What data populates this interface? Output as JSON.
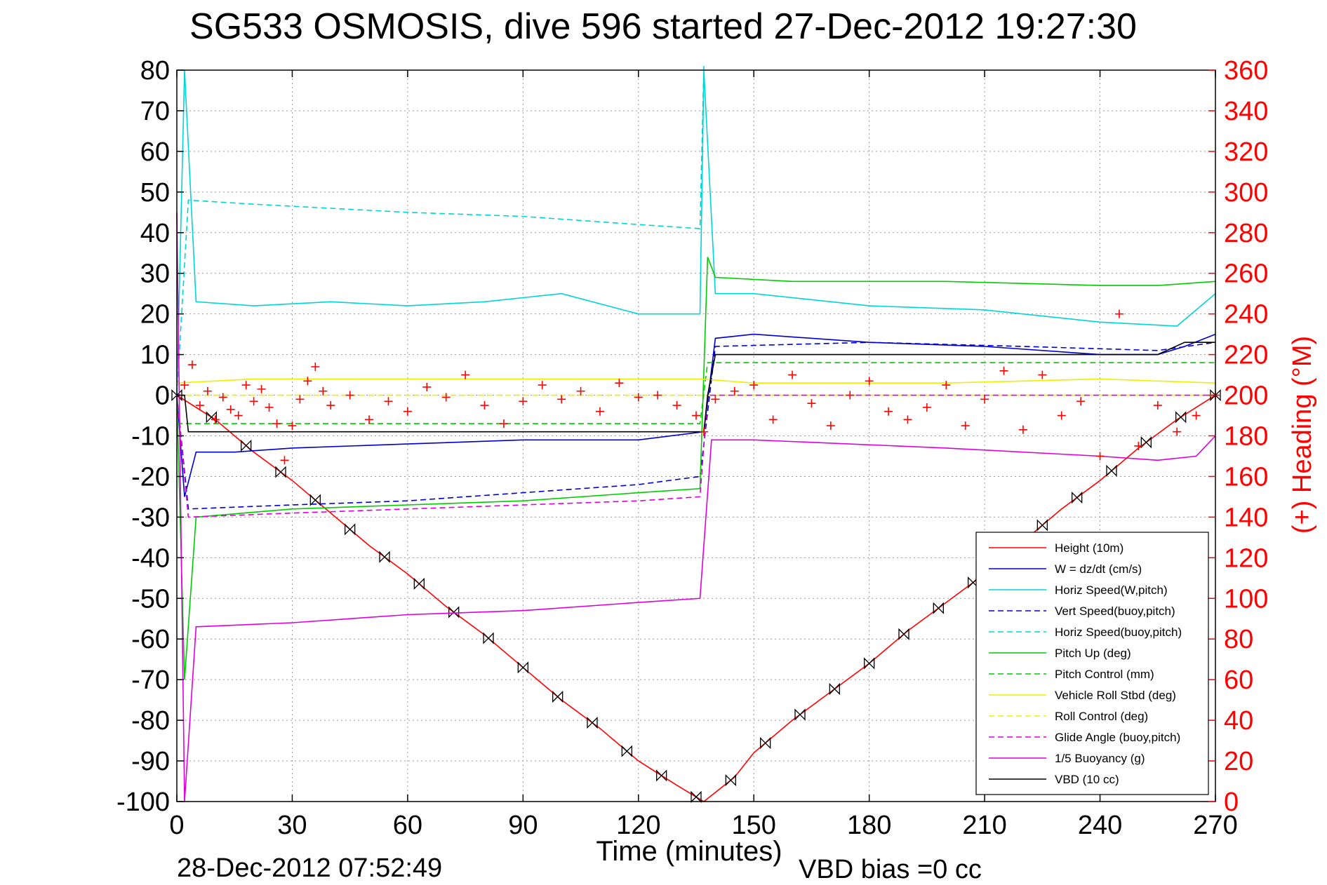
{
  "chart_data": {
    "type": "line",
    "title": "SG533 OSMOSIS, dive 596 started 27-Dec-2012 19:27:30",
    "xlabel": "Time (minutes)",
    "ylabel_right": "(+) Heading (°M)",
    "footer_left": "28-Dec-2012 07:52:49",
    "footer_right": "VBD bias =0 cc",
    "xlim": [
      0,
      270
    ],
    "ylim_left": [
      -100,
      80
    ],
    "ylim_right": [
      0,
      360
    ],
    "x_ticks": [
      "0",
      "30",
      "60",
      "90",
      "120",
      "150",
      "180",
      "210",
      "240",
      "270"
    ],
    "y_ticks_left": [
      "80",
      "70",
      "60",
      "50",
      "40",
      "30",
      "20",
      "10",
      "0",
      "-10",
      "-20",
      "-30",
      "-40",
      "-50",
      "-60",
      "-70",
      "-80",
      "-90",
      "-100"
    ],
    "y_ticks_right": [
      "360",
      "340",
      "320",
      "300",
      "280",
      "260",
      "240",
      "220",
      "200",
      "180",
      "160",
      "140",
      "120",
      "100",
      "80",
      "60",
      "40",
      "20",
      "0"
    ],
    "grid": true,
    "legend_position": "bottom-right",
    "legend": [
      {
        "label": "Height (10m)",
        "color": "#ff0000",
        "dash": false
      },
      {
        "label": "W = dz/dt (cm/s)",
        "color": "#0000cc",
        "dash": false
      },
      {
        "label": "Horiz Speed(W,pitch)",
        "color": "#00d5d5",
        "dash": false
      },
      {
        "label": "Vert Speed(buoy,pitch)",
        "color": "#0000cc",
        "dash": true
      },
      {
        "label": "Horiz Speed(buoy,pitch)",
        "color": "#00d5d5",
        "dash": true
      },
      {
        "label": "Pitch Up (deg)",
        "color": "#00cc00",
        "dash": false
      },
      {
        "label": "Pitch Control (mm)",
        "color": "#00cc00",
        "dash": true
      },
      {
        "label": "Vehicle Roll Stbd (deg)",
        "color": "#eeee00",
        "dash": false
      },
      {
        "label": "Roll Control (deg)",
        "color": "#eeee00",
        "dash": true
      },
      {
        "label": "Glide Angle (buoy,pitch)",
        "color": "#dd00dd",
        "dash": true
      },
      {
        "label": "1/5 Buoyancy (g)",
        "color": "#dd00dd",
        "dash": false
      },
      {
        "label": "VBD (10 cc)",
        "color": "#000000",
        "dash": false
      }
    ],
    "series": [
      {
        "name": "Height (10m)",
        "color": "#ff0000",
        "axis": "left",
        "x": [
          0,
          10,
          20,
          30,
          40,
          50,
          60,
          70,
          80,
          90,
          100,
          110,
          120,
          130,
          137,
          145,
          150,
          160,
          170,
          180,
          190,
          200,
          210,
          220,
          230,
          240,
          250,
          260,
          270
        ],
        "y": [
          0,
          -6,
          -14,
          -21,
          -29,
          -37,
          -44,
          -52,
          -59,
          -67,
          -75,
          -82,
          -90,
          -96,
          -100,
          -94,
          -88,
          -80,
          -73,
          -66,
          -58,
          -51,
          -44,
          -36,
          -28,
          -21,
          -13,
          -6,
          0
        ]
      },
      {
        "name": "W = dz/dt (cm/s)",
        "color": "#0000cc",
        "axis": "left",
        "x": [
          0,
          2,
          5,
          15,
          30,
          60,
          90,
          120,
          137,
          140,
          150,
          180,
          210,
          240,
          255,
          262,
          270
        ],
        "y": [
          0,
          -25,
          -14,
          -14,
          -13,
          -12,
          -11,
          -11,
          -9,
          14,
          15,
          13,
          12,
          10,
          10,
          12,
          15
        ]
      },
      {
        "name": "Horiz Speed(W,pitch)",
        "color": "#00d5d5",
        "axis": "left",
        "x": [
          0,
          2,
          5,
          20,
          40,
          60,
          80,
          100,
          120,
          136,
          137,
          140,
          150,
          180,
          210,
          240,
          260,
          270
        ],
        "y": [
          0,
          80,
          23,
          22,
          23,
          22,
          23,
          25,
          20,
          20,
          80,
          25,
          25,
          22,
          21,
          18,
          17,
          25
        ]
      },
      {
        "name": "Vert Speed(buoy,pitch)",
        "color": "#0000cc",
        "dash": true,
        "axis": "left",
        "x": [
          0,
          3,
          30,
          60,
          90,
          120,
          136,
          140,
          180,
          220,
          255,
          270
        ],
        "y": [
          0,
          -28,
          -27,
          -26,
          -24,
          -22,
          -20,
          12,
          13,
          12,
          11,
          13
        ]
      },
      {
        "name": "Horiz Speed(buoy,pitch)",
        "color": "#00d5d5",
        "dash": true,
        "axis": "left",
        "x": [
          0,
          3,
          20,
          60,
          90,
          120,
          136,
          137
        ],
        "y": [
          0,
          48,
          47,
          45,
          44,
          42,
          41,
          81
        ]
      },
      {
        "name": "Pitch Up (deg)",
        "color": "#00cc00",
        "axis": "left",
        "x": [
          0,
          2,
          5,
          30,
          60,
          90,
          120,
          136,
          138,
          140,
          160,
          200,
          240,
          255,
          270
        ],
        "y": [
          0,
          -70,
          -30,
          -28,
          -27,
          -26,
          -24,
          -23,
          34,
          29,
          28,
          28,
          27,
          27,
          28
        ]
      },
      {
        "name": "Pitch Control (mm)",
        "color": "#00cc00",
        "dash": true,
        "axis": "left",
        "x": [
          0,
          5,
          136,
          138,
          270
        ],
        "y": [
          -7,
          -7,
          -7,
          8,
          8
        ]
      },
      {
        "name": "Vehicle Roll Stbd (deg)",
        "color": "#eeee00",
        "axis": "left",
        "x": [
          0,
          20,
          60,
          100,
          136,
          150,
          200,
          240,
          270
        ],
        "y": [
          3,
          4,
          4,
          4,
          4,
          3,
          3,
          4,
          3
        ]
      },
      {
        "name": "Roll Control (deg)",
        "color": "#eeee00",
        "dash": true,
        "axis": "left",
        "x": [
          0,
          270
        ],
        "y": [
          0,
          0
        ]
      },
      {
        "name": "Glide Angle (buoy,pitch)",
        "color": "#dd00dd",
        "dash": true,
        "axis": "left",
        "x": [
          0,
          3,
          30,
          60,
          90,
          120,
          136,
          138,
          270
        ],
        "y": [
          0,
          -30,
          -29,
          -28,
          -27,
          -26,
          -25,
          0,
          0
        ]
      },
      {
        "name": "1/5 Buoyancy (g)",
        "color": "#dd00dd",
        "axis": "left",
        "x": [
          0,
          2,
          5,
          30,
          60,
          90,
          120,
          136,
          139,
          150,
          200,
          240,
          255,
          265,
          270
        ],
        "y": [
          45,
          -100,
          -57,
          -56,
          -54,
          -53,
          -51,
          -50,
          -11,
          -11,
          -13,
          -15,
          -16,
          -15,
          -10
        ]
      },
      {
        "name": "VBD (10 cc)",
        "color": "#000000",
        "axis": "left",
        "x": [
          0,
          2,
          3,
          137,
          138,
          140,
          255,
          262,
          270
        ],
        "y": [
          0,
          0,
          -9,
          -9,
          0,
          10,
          10,
          13,
          13
        ]
      },
      {
        "name": "Heading",
        "color": "#ff0000",
        "axis": "right",
        "marker": "plus",
        "x": [
          2,
          4,
          6,
          8,
          10,
          12,
          14,
          16,
          18,
          20,
          22,
          24,
          26,
          28,
          30,
          32,
          34,
          36,
          38,
          40,
          45,
          50,
          55,
          60,
          65,
          70,
          75,
          80,
          85,
          90,
          95,
          100,
          105,
          110,
          115,
          120,
          125,
          130,
          135,
          137,
          140,
          145,
          150,
          155,
          160,
          165,
          170,
          175,
          180,
          185,
          190,
          195,
          200,
          205,
          210,
          215,
          220,
          225,
          230,
          235,
          240,
          245,
          250,
          255,
          260,
          265,
          270
        ],
        "y": [
          205,
          215,
          195,
          202,
          188,
          199,
          193,
          190,
          205,
          197,
          203,
          194,
          186,
          168,
          185,
          198,
          207,
          214,
          202,
          195,
          200,
          188,
          197,
          192,
          204,
          199,
          210,
          195,
          186,
          197,
          205,
          198,
          202,
          192,
          206,
          199,
          200,
          195,
          190,
          182,
          198,
          202,
          205,
          188,
          210,
          196,
          185,
          200,
          207,
          192,
          188,
          194,
          205,
          185,
          198,
          212,
          183,
          210,
          190,
          197,
          170,
          240,
          175,
          195,
          182,
          190,
          200
        ]
      }
    ]
  }
}
